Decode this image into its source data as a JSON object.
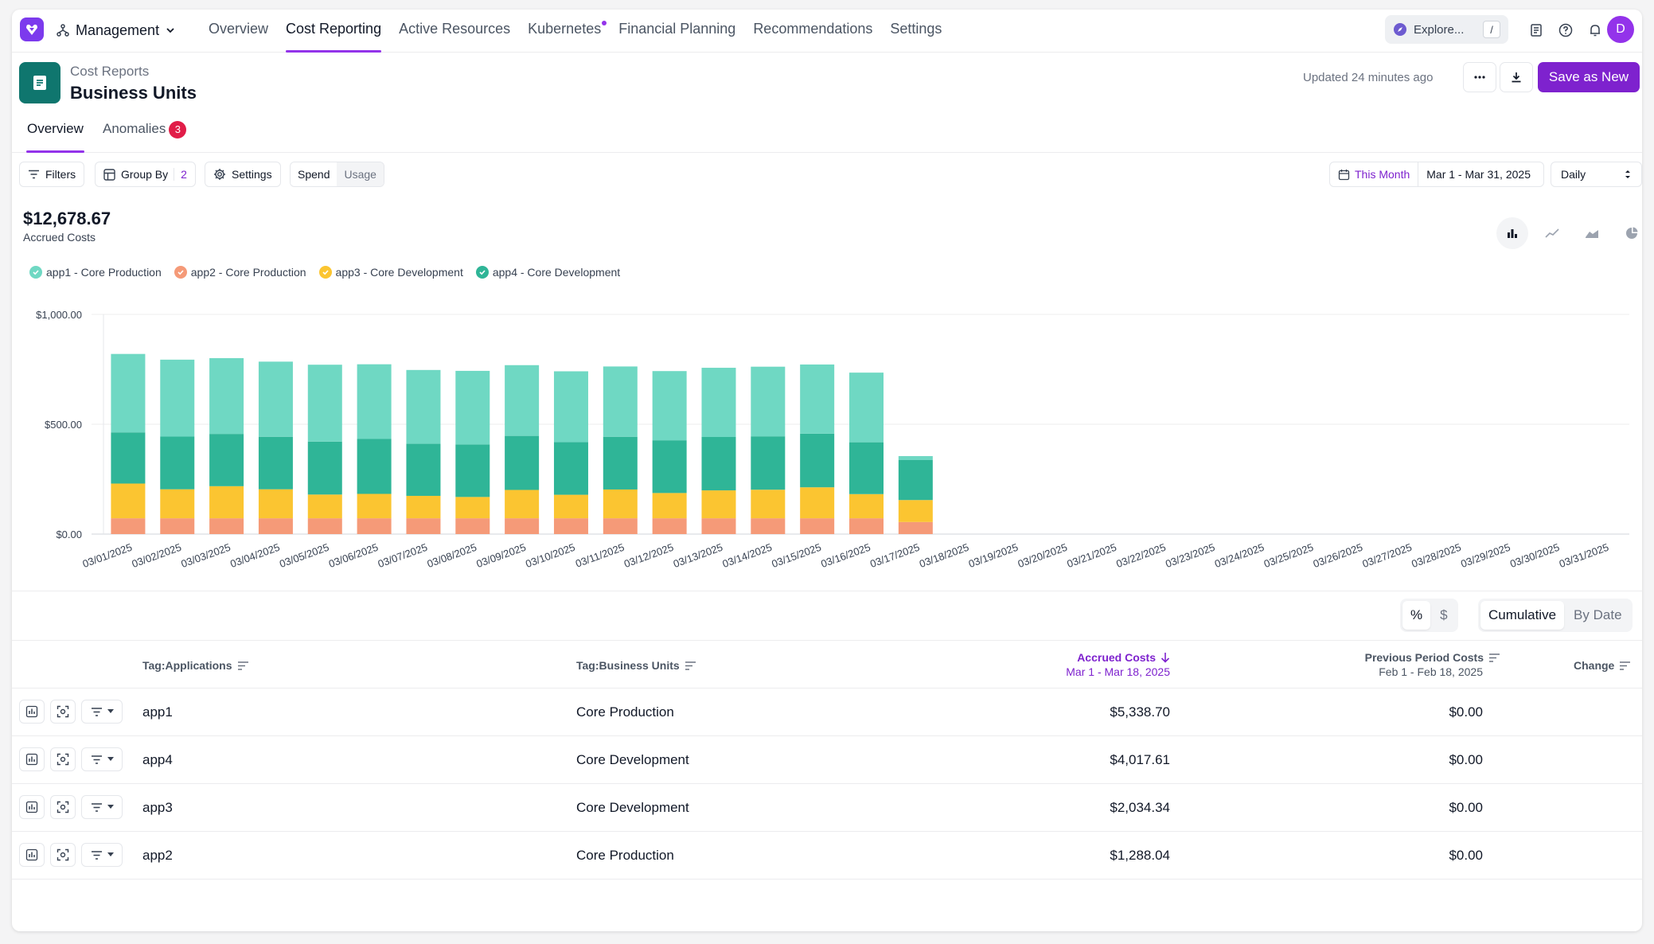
{
  "nav": {
    "org": "Management",
    "tabs": [
      {
        "label": "Overview"
      },
      {
        "label": "Cost Reporting"
      },
      {
        "label": "Active Resources"
      },
      {
        "label": "Kubernetes"
      },
      {
        "label": "Financial Planning"
      },
      {
        "label": "Recommendations"
      },
      {
        "label": "Settings"
      }
    ],
    "explore": "Explore...",
    "explore_shortcut": "/",
    "avatar": "D"
  },
  "header": {
    "breadcrumb": "Cost Reports",
    "title": "Business Units",
    "updated": "Updated 24 minutes ago",
    "save_label": "Save as New"
  },
  "subtabs": {
    "overview": "Overview",
    "anomalies": "Anomalies",
    "anomalies_count": "3"
  },
  "toolbar": {
    "filters": "Filters",
    "group_by": "Group By",
    "group_by_count": "2",
    "settings": "Settings",
    "spend": "Spend",
    "usage": "Usage",
    "date_preset": "This Month",
    "date_range": "Mar 1 - Mar 31, 2025",
    "granularity": "Daily"
  },
  "summary": {
    "total": "$12,678.67",
    "label": "Accrued Costs"
  },
  "legend": [
    {
      "label": "app1 - Core Production",
      "color": "#6fd8c3"
    },
    {
      "label": "app2 - Core Production",
      "color": "#f59a78"
    },
    {
      "label": "app3 - Core Development",
      "color": "#fbc531"
    },
    {
      "label": "app4 - Core Development",
      "color": "#2fb597"
    }
  ],
  "chart_data": {
    "type": "bar",
    "stacked": true,
    "categories": [
      "03/01/2025",
      "03/02/2025",
      "03/03/2025",
      "03/04/2025",
      "03/05/2025",
      "03/06/2025",
      "03/07/2025",
      "03/08/2025",
      "03/09/2025",
      "03/10/2025",
      "03/11/2025",
      "03/12/2025",
      "03/13/2025",
      "03/14/2025",
      "03/15/2025",
      "03/16/2025",
      "03/17/2025",
      "03/18/2025",
      "03/19/2025",
      "03/20/2025",
      "03/21/2025",
      "03/22/2025",
      "03/23/2025",
      "03/24/2025",
      "03/25/2025",
      "03/26/2025",
      "03/27/2025",
      "03/28/2025",
      "03/29/2025",
      "03/30/2025",
      "03/31/2025"
    ],
    "series": [
      {
        "name": "app2 - Core Production",
        "color": "#f59a78",
        "values": [
          72,
          72,
          72,
          72,
          72,
          72,
          72,
          72,
          72,
          72,
          72,
          72,
          72,
          72,
          72,
          72,
          55,
          0,
          0,
          0,
          0,
          0,
          0,
          0,
          0,
          0,
          0,
          0,
          0,
          0,
          0
        ]
      },
      {
        "name": "app3 - Core Development",
        "color": "#fbc531",
        "values": [
          158,
          132,
          146,
          132,
          108,
          111,
          102,
          97,
          129,
          107,
          131,
          115,
          127,
          130,
          141,
          110,
          100,
          0,
          0,
          0,
          0,
          0,
          0,
          0,
          0,
          0,
          0,
          0,
          0,
          0,
          0
        ]
      },
      {
        "name": "app4 - Core Development",
        "color": "#2fb597",
        "values": [
          233,
          240,
          238,
          239,
          241,
          250,
          237,
          239,
          246,
          240,
          240,
          240,
          243,
          243,
          244,
          236,
          182,
          0,
          0,
          0,
          0,
          0,
          0,
          0,
          0,
          0,
          0,
          0,
          0,
          0,
          0
        ]
      },
      {
        "name": "app1 - Core Production",
        "color": "#6fd8c3",
        "values": [
          357,
          350,
          345,
          342,
          350,
          340,
          336,
          335,
          322,
          322,
          320,
          315,
          315,
          317,
          315,
          317,
          18,
          0,
          0,
          0,
          0,
          0,
          0,
          0,
          0,
          0,
          0,
          0,
          0,
          0,
          0
        ]
      }
    ],
    "yticks": [
      "$0.00",
      "$500.00",
      "$1,000.00"
    ],
    "ylim": [
      0,
      1000
    ]
  },
  "table": {
    "mode_percent": "%",
    "mode_dollar": "$",
    "cumulative": "Cumulative",
    "by_date": "By Date",
    "headers": {
      "applications": "Tag:Applications",
      "business_units": "Tag:Business Units",
      "accrued": "Accrued Costs",
      "accrued_range": "Mar 1 - Mar 18, 2025",
      "previous": "Previous Period Costs",
      "previous_range": "Feb 1 - Feb 18, 2025",
      "change": "Change"
    },
    "rows": [
      {
        "app": "app1",
        "unit": "Core Production",
        "accrued": "$5,338.70",
        "previous": "$0.00"
      },
      {
        "app": "app4",
        "unit": "Core Development",
        "accrued": "$4,017.61",
        "previous": "$0.00"
      },
      {
        "app": "app3",
        "unit": "Core Development",
        "accrued": "$2,034.34",
        "previous": "$0.00"
      },
      {
        "app": "app2",
        "unit": "Core Production",
        "accrued": "$1,288.04",
        "previous": "$0.00"
      }
    ]
  }
}
